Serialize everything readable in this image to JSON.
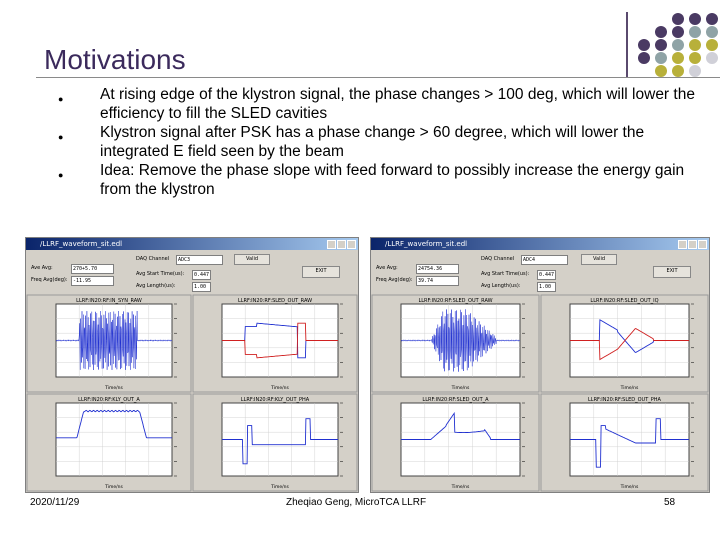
{
  "slide": {
    "title": "Motivations",
    "bullets": [
      "At rising edge of the klystron signal, the phase changes > 100 deg, which will lower the efficiency to fill the SLED cavities",
      "Klystron signal after PSK has a phase change > 60 degree, which will lower the integrated E field seen by the beam",
      "Idea: Remove the phase slope with feed forward to possibly increase the energy gain from the klystron"
    ],
    "footer": {
      "date": "2020/11/29",
      "author": "Zheqiao Geng, MicroTCA LLRF",
      "page": "58"
    },
    "dot_colors": [
      "#4a3a63",
      "#8fa3a6",
      "#b8b03a",
      "#d0d0d8"
    ]
  },
  "windows": [
    {
      "title": "/LLRF_waveform_sit.edl",
      "daq_label": "DAQ Channel",
      "daq_value": "ADC3",
      "valid_label": "Valid",
      "avg_label": "Ave Avg:",
      "avg_value": "270+5.70",
      "freq_label": "Freq Avg(deg):",
      "freq_value": "-11.95",
      "start_label": "Avg Start Time(us):",
      "start_value": "0.447",
      "len_label": "Avg Length(us):",
      "len_value": "1.00",
      "exit_label": "EXIT",
      "plots": [
        {
          "title": "LLRF:IN20:RF:IN_SYN_RAW",
          "kind": "burst",
          "xlabel": "Time/ns"
        },
        {
          "title": "LLRF:IN20:RF:SLED_OUT_RAW",
          "kind": "phase1",
          "xlabel": "Time/ns"
        },
        {
          "title": "LLRF:IN20:RF:KLY_OUT_A",
          "kind": "plateau",
          "xlabel": "Time/ns"
        },
        {
          "title": "LLRF:IN20:RF:KLY_OUT_PHA",
          "kind": "phase2",
          "xlabel": "Time/ns"
        }
      ]
    },
    {
      "title": "/LLRF_waveform_sit.edl",
      "daq_label": "DAQ Channel",
      "daq_value": "ADC4",
      "valid_label": "Valid",
      "avg_label": "Ave Avg:",
      "avg_value": "24754.36",
      "freq_label": "Freq Avg(deg):",
      "freq_value": "39.74",
      "start_label": "Avg Start Time(us):",
      "start_value": "0.447",
      "len_label": "Avg Length(us):",
      "len_value": "1.00",
      "exit_label": "EXIT",
      "plots": [
        {
          "title": "LLRF:IN20:RF:SLED_OUT_RAW",
          "kind": "burst2",
          "xlabel": "Time/ns"
        },
        {
          "title": "LLRF:IN20:RF:SLED_OUT_IQ",
          "kind": "phase3",
          "xlabel": "Time/ns"
        },
        {
          "title": "LLRF:IN20:RF:SLED_OUT_A",
          "kind": "sledamp",
          "xlabel": "Time/ns"
        },
        {
          "title": "LLRF:IN20:RF:SLED_OUT_PHA",
          "kind": "phase4",
          "xlabel": "Time/ns"
        }
      ]
    }
  ]
}
